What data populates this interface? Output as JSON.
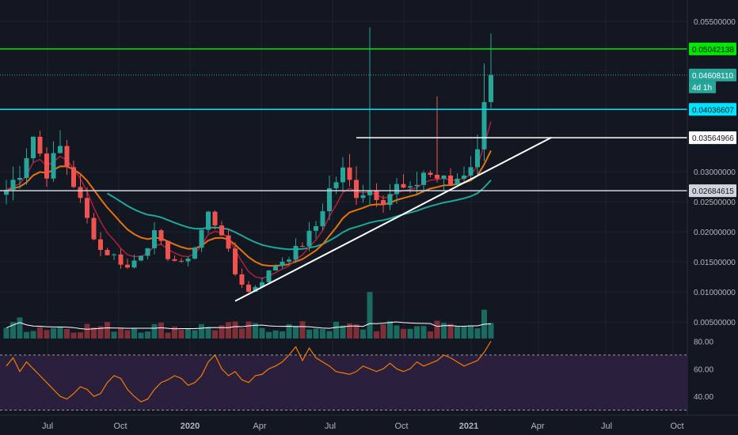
{
  "chart_data": {
    "type": "candlestick",
    "price_axis": {
      "ticks": [
        "0.05500000",
        "0.03000000",
        "0.02500000",
        "0.02000000",
        "0.01500000",
        "0.01000000",
        "0.00500000"
      ],
      "tick_values": [
        0.055,
        0.03,
        0.025,
        0.02,
        0.015,
        0.01,
        0.005
      ],
      "ylim": [
        0.002,
        0.0575
      ]
    },
    "rsi_axis": {
      "ticks": [
        "80.00",
        "60.00",
        "40.00"
      ],
      "tick_values": [
        80,
        60,
        40
      ],
      "ylim": [
        28,
        82
      ],
      "bands": [
        70,
        30
      ]
    },
    "time_axis": {
      "labels": [
        "Jul",
        "Oct",
        "2020",
        "Apr",
        "Jul",
        "Oct",
        "2021",
        "Apr",
        "Jul",
        "Oct"
      ],
      "bold": [
        false,
        false,
        true,
        false,
        false,
        false,
        true,
        false,
        false,
        false
      ]
    },
    "price_labels": [
      {
        "value": 0.05042138,
        "text": "0.05042138",
        "color": "#00e600",
        "text_color": "#131722"
      },
      {
        "value": 0.0460811,
        "text": "0.04608110",
        "sub": "4d 1h",
        "color": "#26a69a",
        "text_color": "#ffffff"
      },
      {
        "value": 0.04036607,
        "text": "0.04036607",
        "color": "#00e5ff",
        "text_color": "#131722"
      },
      {
        "value": 0.03564966,
        "text": "0.03564966",
        "color": "#ffffff",
        "text_color": "#131722"
      },
      {
        "value": 0.02684615,
        "text": "0.02684615",
        "color": "#d1d4dc",
        "text_color": "#131722"
      }
    ],
    "colors": {
      "up": "#26a69a",
      "down": "#ef5350",
      "ema_short": "#b71c3c",
      "ema_mid": "#e8730c",
      "ema_long": "#1fa89a",
      "volume_ma": "#ffffff",
      "rsi_line": "#f57c00",
      "rsi_bg": "#2a1f3d"
    },
    "candle_points": [
      [
        0,
        0.027
      ],
      [
        2,
        0.03
      ],
      [
        4,
        0.036
      ],
      [
        6,
        0.03
      ],
      [
        8,
        0.034
      ],
      [
        10,
        0.028
      ],
      [
        12,
        0.022
      ],
      [
        14,
        0.017
      ],
      [
        16,
        0.016
      ],
      [
        18,
        0.014
      ],
      [
        20,
        0.0165
      ],
      [
        22,
        0.0195
      ],
      [
        24,
        0.016
      ],
      [
        26,
        0.0145
      ],
      [
        28,
        0.0175
      ],
      [
        30,
        0.023
      ],
      [
        32,
        0.02
      ],
      [
        34,
        0.013
      ],
      [
        36,
        0.01
      ],
      [
        38,
        0.012
      ],
      [
        40,
        0.0145
      ],
      [
        42,
        0.016
      ],
      [
        44,
        0.018
      ],
      [
        46,
        0.021
      ],
      [
        48,
        0.027
      ],
      [
        50,
        0.03
      ],
      [
        52,
        0.0265
      ],
      [
        54,
        0.027
      ],
      [
        56,
        0.0255
      ],
      [
        58,
        0.0275
      ],
      [
        60,
        0.0265
      ],
      [
        62,
        0.03
      ],
      [
        64,
        0.029
      ],
      [
        66,
        0.028
      ],
      [
        68,
        0.03
      ],
      [
        70,
        0.033
      ],
      [
        71,
        0.043
      ],
      [
        72,
        0.0461
      ]
    ],
    "rsi_points": [
      [
        0,
        62
      ],
      [
        1,
        68
      ],
      [
        2,
        58
      ],
      [
        3,
        65
      ],
      [
        4,
        60
      ],
      [
        5,
        55
      ],
      [
        6,
        50
      ],
      [
        7,
        45
      ],
      [
        8,
        40
      ],
      [
        9,
        38
      ],
      [
        10,
        42
      ],
      [
        11,
        47
      ],
      [
        12,
        45
      ],
      [
        13,
        40
      ],
      [
        14,
        42
      ],
      [
        15,
        50
      ],
      [
        16,
        55
      ],
      [
        17,
        53
      ],
      [
        18,
        45
      ],
      [
        19,
        40
      ],
      [
        20,
        36
      ],
      [
        21,
        38
      ],
      [
        22,
        45
      ],
      [
        23,
        50
      ],
      [
        24,
        52
      ],
      [
        25,
        55
      ],
      [
        26,
        53
      ],
      [
        27,
        48
      ],
      [
        28,
        50
      ],
      [
        29,
        55
      ],
      [
        30,
        65
      ],
      [
        31,
        70
      ],
      [
        32,
        60
      ],
      [
        33,
        55
      ],
      [
        34,
        58
      ],
      [
        35,
        52
      ],
      [
        36,
        50
      ],
      [
        37,
        55
      ],
      [
        38,
        56
      ],
      [
        39,
        60
      ],
      [
        40,
        62
      ],
      [
        41,
        65
      ],
      [
        42,
        70
      ],
      [
        43,
        76
      ],
      [
        44,
        66
      ],
      [
        45,
        75
      ],
      [
        46,
        68
      ],
      [
        47,
        65
      ],
      [
        48,
        62
      ],
      [
        49,
        58
      ],
      [
        50,
        57
      ],
      [
        51,
        56
      ],
      [
        52,
        58
      ],
      [
        53,
        62
      ],
      [
        54,
        60
      ],
      [
        55,
        58
      ],
      [
        56,
        60
      ],
      [
        57,
        64
      ],
      [
        58,
        60
      ],
      [
        59,
        58
      ],
      [
        60,
        60
      ],
      [
        61,
        65
      ],
      [
        62,
        62
      ],
      [
        63,
        64
      ],
      [
        64,
        66
      ],
      [
        65,
        70
      ],
      [
        66,
        68
      ],
      [
        67,
        65
      ],
      [
        68,
        62
      ],
      [
        69,
        64
      ],
      [
        70,
        66
      ],
      [
        71,
        72
      ],
      [
        72,
        80
      ]
    ]
  }
}
